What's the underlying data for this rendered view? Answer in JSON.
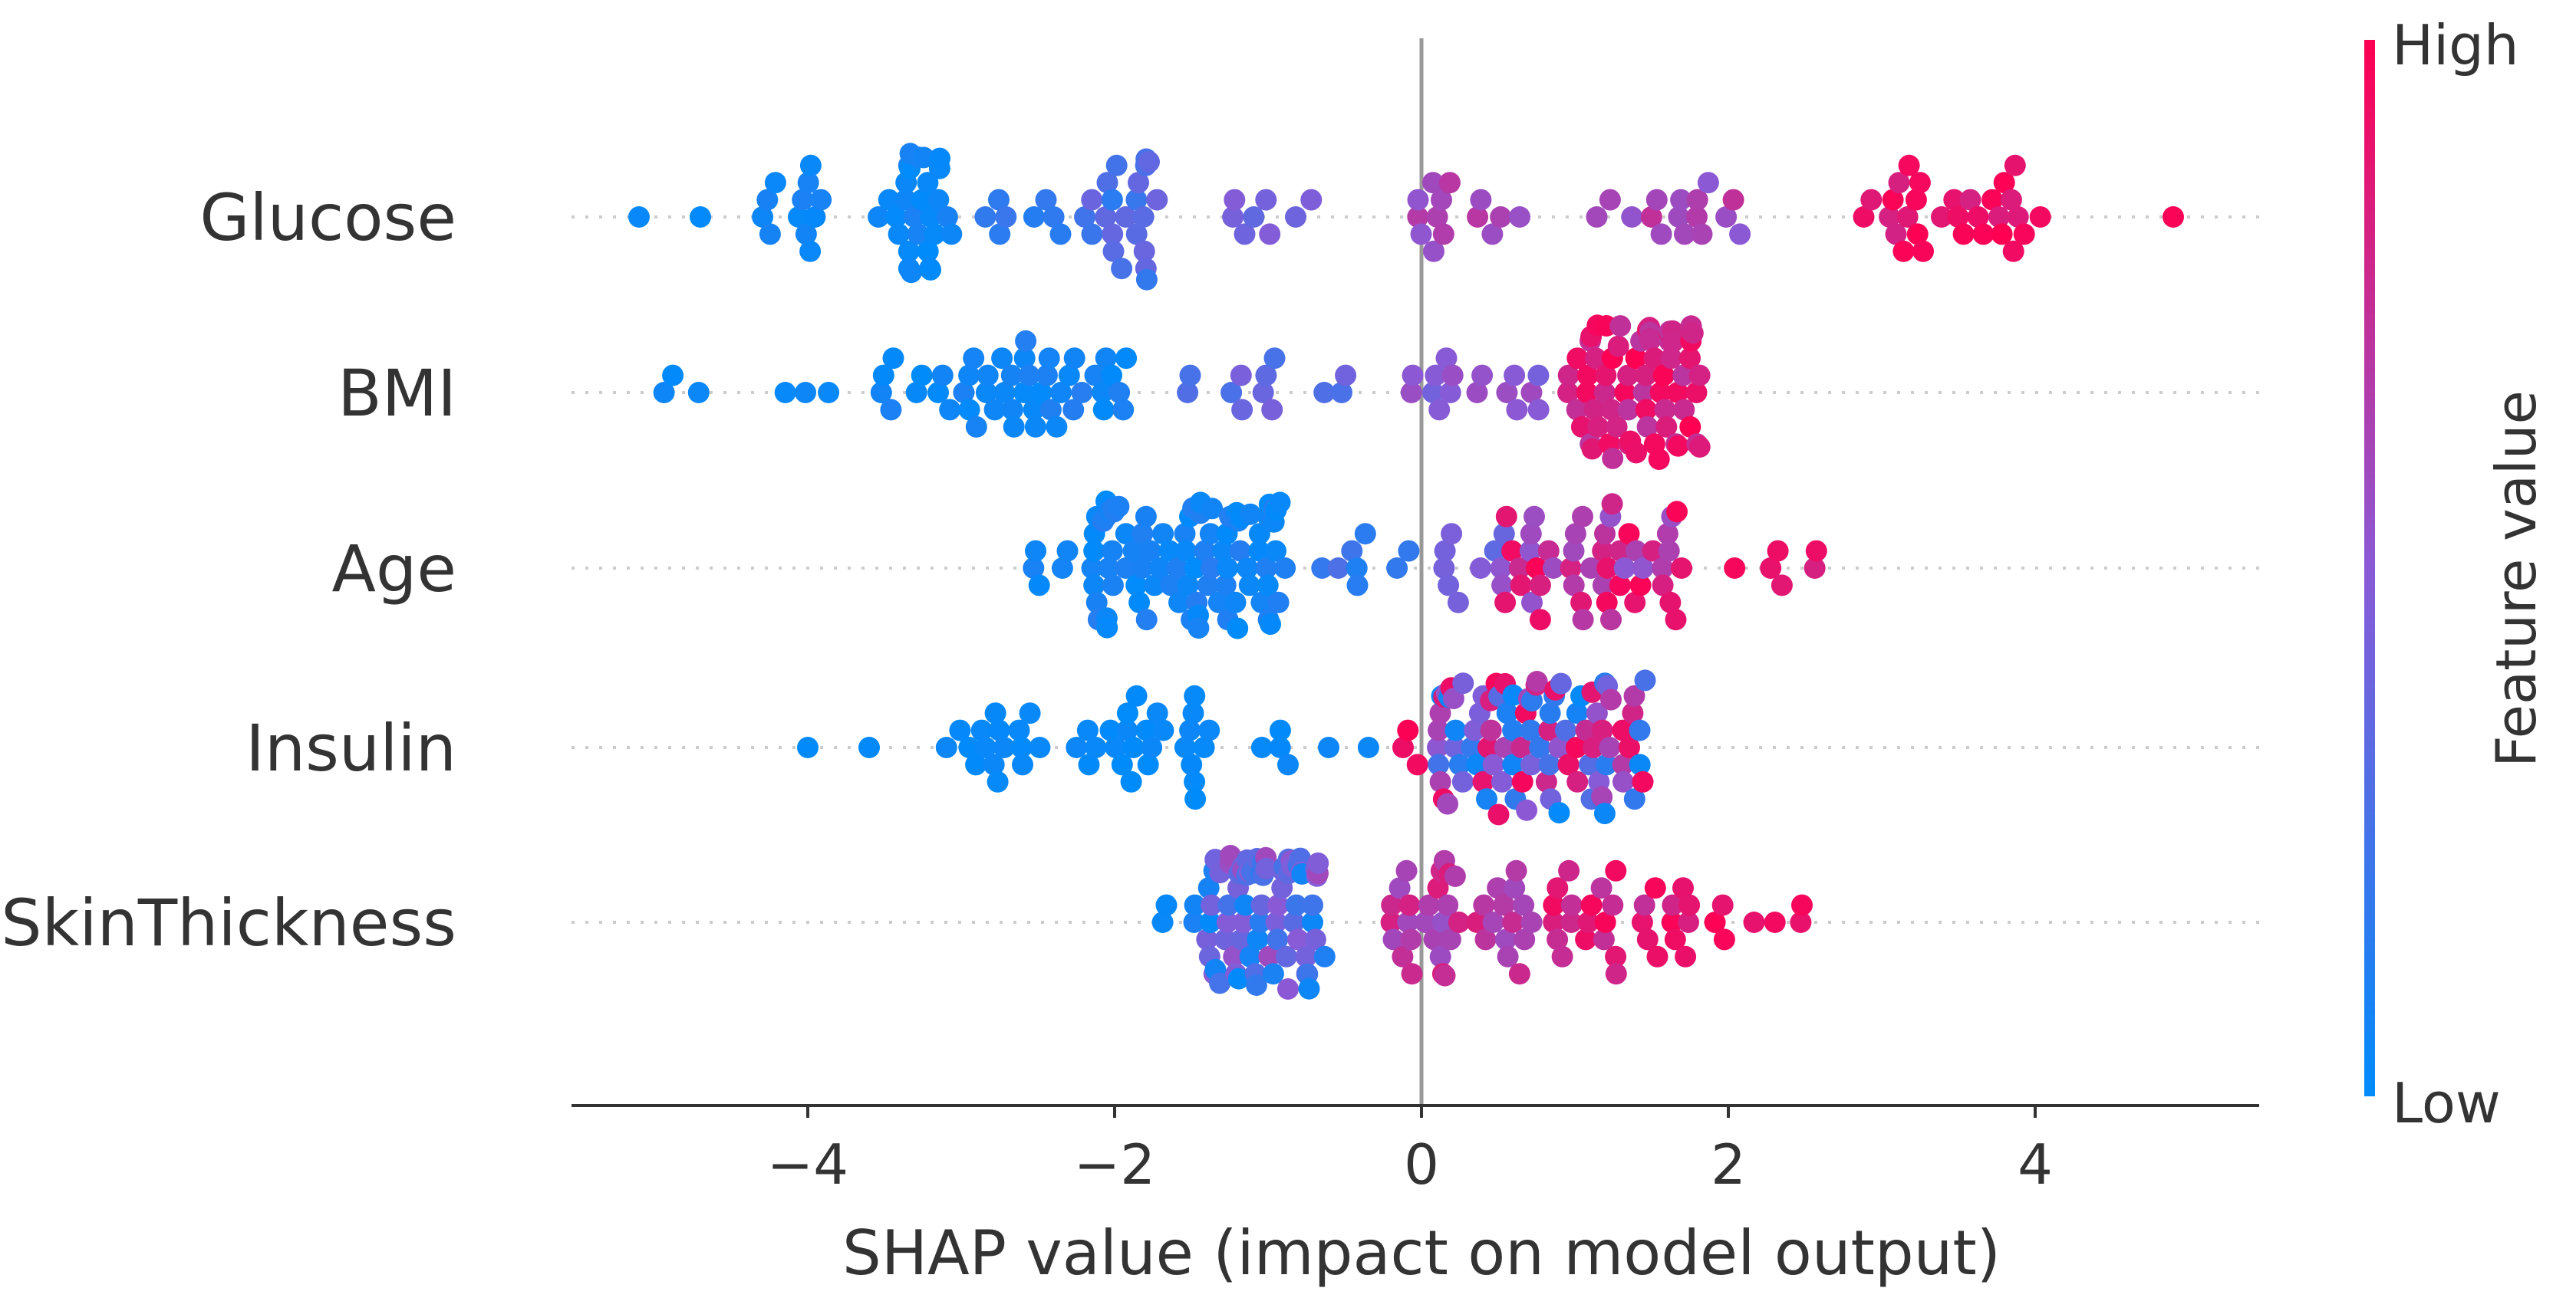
{
  "chart_data": {
    "type": "scatter",
    "subtype": "shap-beeswarm",
    "xlabel": "SHAP value (impact on model output)",
    "xlim": [
      -5.6,
      5.5
    ],
    "xticks": [
      {
        "value": -4,
        "label": "−4"
      },
      {
        "value": -2,
        "label": "−2"
      },
      {
        "value": 0,
        "label": "0"
      },
      {
        "value": 2,
        "label": "2"
      },
      {
        "value": 4,
        "label": "4"
      }
    ],
    "colorbar": {
      "title": "Feature value",
      "high_label": "High",
      "low_label": "Low",
      "low_color": "#008bfb",
      "high_color": "#ff0052"
    },
    "features": [
      {
        "name": "Glucose",
        "clusters": [
          {
            "center": -5.1,
            "width": 0.1,
            "count": 1,
            "fmin": 0.0,
            "fmax": 0.05
          },
          {
            "center": -4.7,
            "width": 0.1,
            "count": 1,
            "fmin": 0.0,
            "fmax": 0.05
          },
          {
            "center": -4.1,
            "width": 0.5,
            "count": 12,
            "fmin": 0.0,
            "fmax": 0.1
          },
          {
            "center": -3.3,
            "width": 0.5,
            "count": 28,
            "fmin": 0.0,
            "fmax": 0.1
          },
          {
            "center": -2.6,
            "width": 0.5,
            "count": 8,
            "fmin": 0.05,
            "fmax": 0.25
          },
          {
            "center": -1.9,
            "width": 0.6,
            "count": 22,
            "fmin": 0.15,
            "fmax": 0.4
          },
          {
            "center": -1.0,
            "width": 0.6,
            "count": 8,
            "fmin": 0.35,
            "fmax": 0.5
          },
          {
            "center": 0.3,
            "width": 0.8,
            "count": 14,
            "fmin": 0.5,
            "fmax": 0.7
          },
          {
            "center": 1.6,
            "width": 1.0,
            "count": 16,
            "fmin": 0.5,
            "fmax": 0.75
          },
          {
            "center": 3.5,
            "width": 1.3,
            "count": 30,
            "fmin": 0.8,
            "fmax": 1.0
          },
          {
            "center": 4.9,
            "width": 0.1,
            "count": 1,
            "fmin": 0.95,
            "fmax": 1.0
          }
        ]
      },
      {
        "name": "BMI",
        "clusters": [
          {
            "center": -4.8,
            "width": 0.3,
            "count": 3,
            "fmin": 0.0,
            "fmax": 0.05
          },
          {
            "center": -4.1,
            "width": 0.5,
            "count": 3,
            "fmin": 0.0,
            "fmax": 0.05
          },
          {
            "center": -3.1,
            "width": 0.9,
            "count": 22,
            "fmin": 0.0,
            "fmax": 0.1
          },
          {
            "center": -2.2,
            "width": 0.8,
            "count": 24,
            "fmin": 0.0,
            "fmax": 0.15
          },
          {
            "center": -1.0,
            "width": 1.2,
            "count": 12,
            "fmin": 0.25,
            "fmax": 0.45
          },
          {
            "center": 0.3,
            "width": 1.0,
            "count": 16,
            "fmin": 0.4,
            "fmax": 0.6
          },
          {
            "center": 1.4,
            "width": 0.9,
            "count": 70,
            "fmin": 0.7,
            "fmax": 1.0
          }
        ]
      },
      {
        "name": "Age",
        "clusters": [
          {
            "center": -2.5,
            "width": 0.4,
            "count": 5,
            "fmin": 0.0,
            "fmax": 0.1
          },
          {
            "center": -1.5,
            "width": 1.3,
            "count": 90,
            "fmin": 0.0,
            "fmax": 0.15
          },
          {
            "center": -0.4,
            "width": 0.7,
            "count": 8,
            "fmin": 0.1,
            "fmax": 0.3
          },
          {
            "center": 0.3,
            "width": 0.5,
            "count": 8,
            "fmin": 0.3,
            "fmax": 0.5
          },
          {
            "center": 1.1,
            "width": 1.2,
            "count": 50,
            "fmin": 0.5,
            "fmax": 1.0
          },
          {
            "center": 2.3,
            "width": 0.6,
            "count": 6,
            "fmin": 0.8,
            "fmax": 1.0
          }
        ]
      },
      {
        "name": "Insulin",
        "clusters": [
          {
            "center": -4.0,
            "width": 0.1,
            "count": 1,
            "fmin": 0.0,
            "fmax": 0.05
          },
          {
            "center": -3.6,
            "width": 0.1,
            "count": 1,
            "fmin": 0.0,
            "fmax": 0.05
          },
          {
            "center": -2.8,
            "width": 0.7,
            "count": 16,
            "fmin": 0.0,
            "fmax": 0.05
          },
          {
            "center": -1.8,
            "width": 0.9,
            "count": 26,
            "fmin": 0.0,
            "fmax": 0.05
          },
          {
            "center": -0.7,
            "width": 0.8,
            "count": 6,
            "fmin": 0.0,
            "fmax": 0.05
          },
          {
            "center": -0.1,
            "width": 0.3,
            "count": 3,
            "fmin": 0.9,
            "fmax": 1.0
          },
          {
            "center": 0.8,
            "width": 1.4,
            "count": 95,
            "fmin": 0.0,
            "fmax": 1.0
          }
        ]
      },
      {
        "name": "SkinThickness",
        "clusters": [
          {
            "center": -1.6,
            "width": 0.5,
            "count": 6,
            "fmin": 0.0,
            "fmax": 0.1
          },
          {
            "center": -1.0,
            "width": 0.8,
            "count": 75,
            "fmin": 0.0,
            "fmax": 0.6
          },
          {
            "center": 0.3,
            "width": 1.0,
            "count": 40,
            "fmin": 0.55,
            "fmax": 0.85
          },
          {
            "center": 1.3,
            "width": 0.9,
            "count": 30,
            "fmin": 0.7,
            "fmax": 1.0
          },
          {
            "center": 2.2,
            "width": 0.6,
            "count": 7,
            "fmin": 0.85,
            "fmax": 1.0
          }
        ]
      }
    ]
  }
}
